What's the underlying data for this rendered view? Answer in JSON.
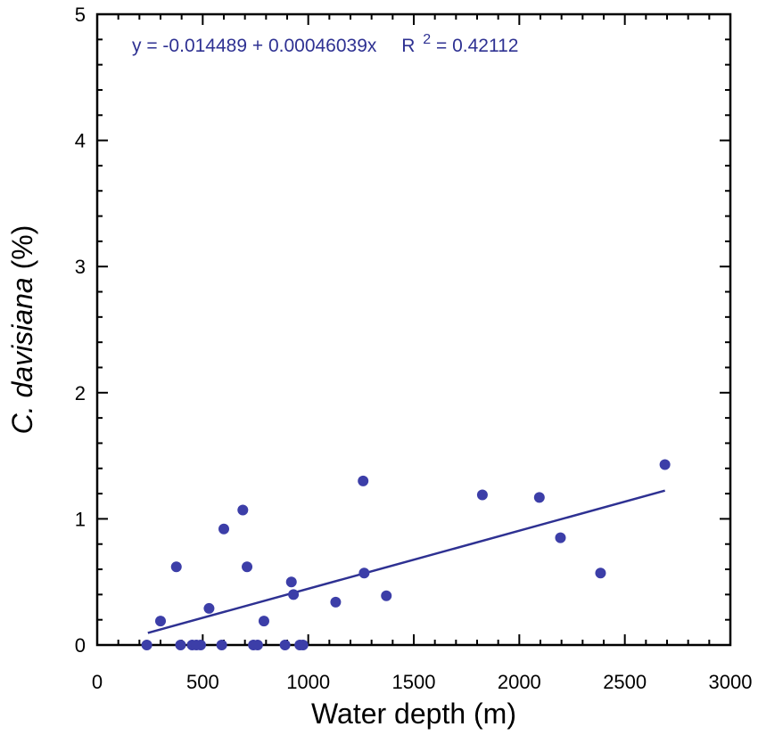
{
  "chart_data": {
    "type": "scatter",
    "title": "",
    "xlabel": "Water depth (m)",
    "ylabel_italic": "C. davisiana",
    "ylabel_rest": " (%)",
    "xlim": [
      0,
      3000
    ],
    "ylim": [
      0,
      5
    ],
    "x_ticks": [
      0,
      500,
      1000,
      1500,
      2000,
      2500,
      3000
    ],
    "x_tick_labels": [
      "0",
      "500",
      "1000",
      "1500",
      "2000",
      "2500",
      "3000"
    ],
    "x_minor_step": 100,
    "y_ticks": [
      0,
      1,
      2,
      3,
      4,
      5
    ],
    "y_tick_labels": [
      "0",
      "1",
      "2",
      "3",
      "4",
      "5"
    ],
    "y_minor_step": 0.2,
    "grid": false,
    "colors": {
      "points": "#3c3ea8",
      "line": "#2e3192",
      "axes": "#000000",
      "equation": "#2e3192"
    },
    "equation": {
      "lhs": "y = -0.014489 + 0.00046039x",
      "r_label": "R",
      "r_exp": "2",
      "r_value": "= 0.42112"
    },
    "fit": {
      "intercept": -0.014489,
      "slope": 0.00046039,
      "x_range": [
        240,
        2690
      ]
    },
    "series": [
      {
        "points": [
          [
            235,
            0
          ],
          [
            300,
            0.19
          ],
          [
            375,
            0.62
          ],
          [
            395,
            0
          ],
          [
            450,
            0
          ],
          [
            470,
            0
          ],
          [
            490,
            0
          ],
          [
            530,
            0.29
          ],
          [
            590,
            0
          ],
          [
            600,
            0.92
          ],
          [
            690,
            1.07
          ],
          [
            710,
            0.62
          ],
          [
            740,
            0
          ],
          [
            760,
            0
          ],
          [
            790,
            0.19
          ],
          [
            890,
            0
          ],
          [
            920,
            0.5
          ],
          [
            930,
            0.4
          ],
          [
            960,
            0
          ],
          [
            975,
            0
          ],
          [
            1130,
            0.34
          ],
          [
            1260,
            1.3
          ],
          [
            1265,
            0.57
          ],
          [
            1370,
            0.39
          ],
          [
            1825,
            1.19
          ],
          [
            2095,
            1.17
          ],
          [
            2195,
            0.85
          ],
          [
            2385,
            0.57
          ],
          [
            2690,
            1.43
          ]
        ]
      }
    ]
  }
}
